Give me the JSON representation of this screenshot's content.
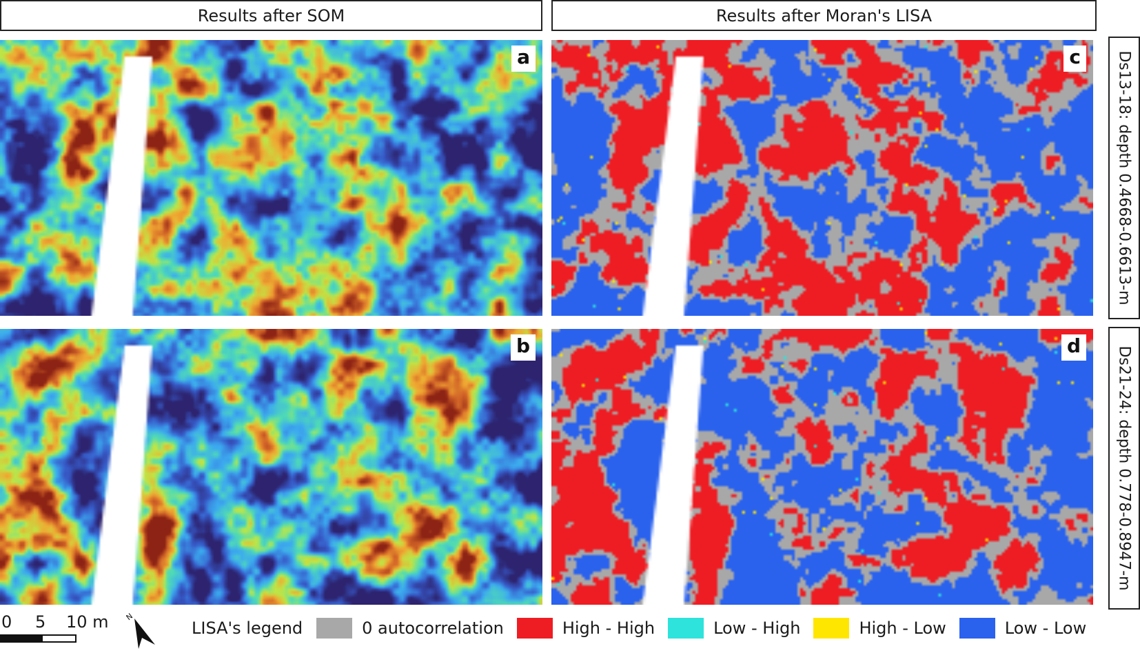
{
  "headers": {
    "left": "Results after SOM",
    "right": "Results after Moran's LISA"
  },
  "panels": [
    {
      "id": "a",
      "label": "a"
    },
    {
      "id": "b",
      "label": "b"
    },
    {
      "id": "c",
      "label": "c"
    },
    {
      "id": "d",
      "label": "d"
    }
  ],
  "side_labels": {
    "top": "Ds13-18: depth 0.4668-0.6613-m",
    "bottom": "Ds21-24: depth 0.778-0.8947-m"
  },
  "scale_bar": {
    "ticks": [
      "0",
      "5",
      "10 m"
    ]
  },
  "north_arrow": {
    "icon": "north-arrow-icon",
    "label": "N"
  },
  "legend": {
    "title": "LISA's legend",
    "items": [
      {
        "label": "0 autocorrelation",
        "color": "#a8a8a8"
      },
      {
        "label": "High - High",
        "color": "#ee1d23"
      },
      {
        "label": "Low - High",
        "color": "#2de3db"
      },
      {
        "label": "High - Low",
        "color": "#ffe600"
      },
      {
        "label": "Low - Low",
        "color": "#2a62ee"
      }
    ]
  }
}
